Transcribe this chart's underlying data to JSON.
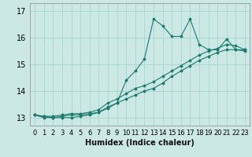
{
  "title": "",
  "xlabel": "Humidex (Indice chaleur)",
  "xlim": [
    -0.5,
    23.5
  ],
  "ylim": [
    12.7,
    17.3
  ],
  "yticks": [
    13,
    14,
    15,
    16,
    17
  ],
  "xticks": [
    0,
    1,
    2,
    3,
    4,
    5,
    6,
    7,
    8,
    9,
    10,
    11,
    12,
    13,
    14,
    15,
    16,
    17,
    18,
    19,
    20,
    21,
    22,
    23
  ],
  "bg_color": "#cce8e4",
  "line_color": "#1a7a6e",
  "grid_color": "#aad4ce",
  "line1_x": [
    0,
    1,
    2,
    3,
    4,
    5,
    6,
    7,
    8,
    9,
    10,
    11,
    12,
    13,
    14,
    15,
    16,
    17,
    18,
    19,
    20,
    21,
    22,
    23
  ],
  "line1_y": [
    13.1,
    13.05,
    13.0,
    13.05,
    13.1,
    13.1,
    13.15,
    13.2,
    13.35,
    13.55,
    14.4,
    14.75,
    15.2,
    16.7,
    16.45,
    16.05,
    16.05,
    16.7,
    15.75,
    15.55,
    15.55,
    15.95,
    15.55,
    15.5
  ],
  "line2_x": [
    0,
    1,
    2,
    3,
    4,
    5,
    6,
    7,
    8,
    9,
    10,
    11,
    12,
    13,
    14,
    15,
    16,
    17,
    18,
    19,
    20,
    21,
    22,
    23
  ],
  "line2_y": [
    13.1,
    13.0,
    13.0,
    13.0,
    13.0,
    13.05,
    13.1,
    13.2,
    13.4,
    13.55,
    13.7,
    13.85,
    14.0,
    14.1,
    14.3,
    14.55,
    14.75,
    14.95,
    15.15,
    15.3,
    15.45,
    15.55,
    15.55,
    15.55
  ],
  "line3_x": [
    0,
    1,
    2,
    3,
    4,
    5,
    6,
    7,
    8,
    9,
    10,
    11,
    12,
    13,
    14,
    15,
    16,
    17,
    18,
    19,
    20,
    21,
    22,
    23
  ],
  "line3_y": [
    13.1,
    13.05,
    13.05,
    13.1,
    13.15,
    13.15,
    13.2,
    13.3,
    13.55,
    13.7,
    13.9,
    14.1,
    14.2,
    14.35,
    14.55,
    14.75,
    14.95,
    15.15,
    15.35,
    15.5,
    15.6,
    15.75,
    15.7,
    15.55
  ],
  "xlabel_fontsize": 7,
  "tick_fontsize": 6,
  "ytick_fontsize": 7
}
